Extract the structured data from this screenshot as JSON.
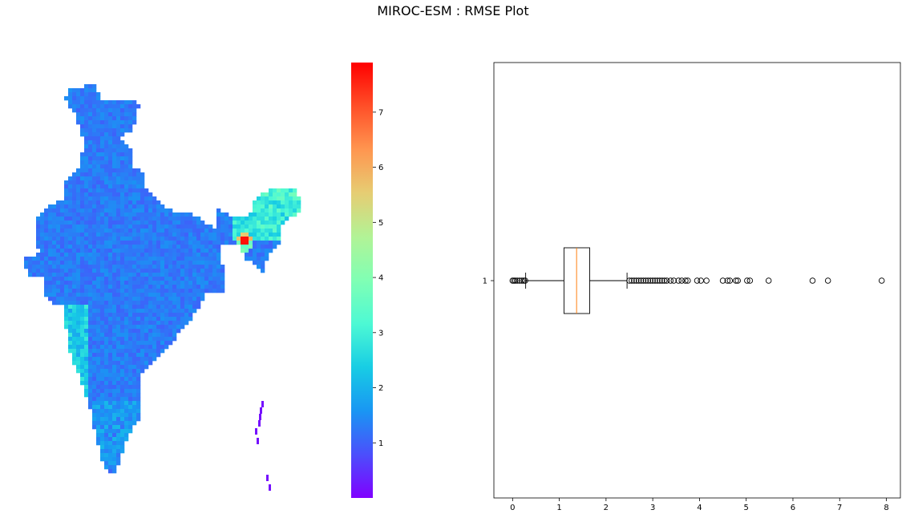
{
  "figure": {
    "title": "MIROC-ESM : RMSE Plot"
  },
  "colors": {
    "colormap": [
      "#8000ff",
      "#4b4ffc",
      "#1996f3",
      "#18cde4",
      "#4df9d4",
      "#80ffb4",
      "#b2f396",
      "#e6cd73",
      "#ff9650",
      "#ff4f28",
      "#ff0000"
    ],
    "box_edge": "#000000",
    "median": "#ff7f0e"
  },
  "chart_data": [
    {
      "type": "heatmap",
      "description_of_shape": "gridded map of India",
      "colorbar": {
        "min": 0,
        "max": 7.9,
        "ticks": [
          1,
          2,
          3,
          4,
          5,
          6,
          7
        ],
        "colormap": "rainbow"
      },
      "axes_visible": false,
      "notable_values": {
        "typical_range": [
          1,
          2
        ],
        "max_hotspot": 7.9
      }
    },
    {
      "type": "boxplot",
      "orientation": "horizontal",
      "category_ticks": [
        "1"
      ],
      "xlim": [
        -0.4,
        8.3
      ],
      "x_ticks": [
        0,
        1,
        2,
        3,
        4,
        5,
        6,
        7,
        8
      ],
      "stats": {
        "whisker_low": 0.28,
        "q1": 1.1,
        "median": 1.37,
        "q3": 1.65,
        "whisker_high": 2.45
      },
      "outliers_low": [
        0.0,
        0.03,
        0.06,
        0.1,
        0.15,
        0.2,
        0.24,
        0.27
      ],
      "outliers_high": [
        2.5,
        2.55,
        2.6,
        2.65,
        2.7,
        2.75,
        2.8,
        2.85,
        2.9,
        2.95,
        3.0,
        3.05,
        3.1,
        3.15,
        3.2,
        3.25,
        3.3,
        3.38,
        3.45,
        3.55,
        3.62,
        3.7,
        3.75,
        3.95,
        4.03,
        4.15,
        4.5,
        4.6,
        4.65,
        4.78,
        4.82,
        5.02,
        5.08,
        5.48,
        6.42,
        6.75,
        7.9
      ]
    }
  ]
}
